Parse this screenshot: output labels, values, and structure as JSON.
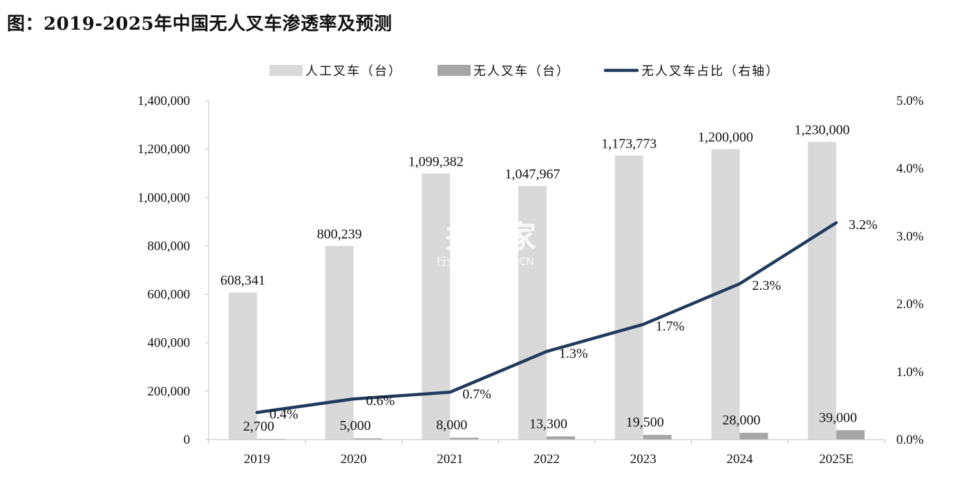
{
  "title": "图：2019-2025年中国无人叉车渗透率及预测",
  "watermark": {
    "brand": "并购家",
    "tagline": "行业报告 IPOIPO.CN"
  },
  "chart_data": {
    "type": "bar",
    "categories": [
      "2019",
      "2020",
      "2021",
      "2022",
      "2023",
      "2024",
      "2025E"
    ],
    "series": [
      {
        "name": "人工叉车（台）",
        "type": "bar",
        "axis": "left",
        "color": "#d9d9d9",
        "values": [
          608341,
          800239,
          1099382,
          1047967,
          1173773,
          1200000,
          1230000
        ],
        "labels": [
          "608,341",
          "800,239",
          "1,099,382",
          "1,047,967",
          "1,173,773",
          "1,200,000",
          "1,230,000"
        ]
      },
      {
        "name": "无人叉车（台）",
        "type": "bar",
        "axis": "left",
        "color": "#a6a6a6",
        "values": [
          2700,
          5000,
          8000,
          13300,
          19500,
          28000,
          39000
        ],
        "labels": [
          "2,700",
          "5,000",
          "8,000",
          "13,300",
          "19,500",
          "28,000",
          "39,000"
        ]
      },
      {
        "name": "无人叉车占比（右轴",
        "type": "line",
        "axis": "right",
        "color": "#1f3a5c",
        "values": [
          0.4,
          0.6,
          0.7,
          1.3,
          1.7,
          2.3,
          3.2
        ],
        "labels": [
          "0.4%",
          "0.6%",
          "0.7%",
          "1.3%",
          "1.7%",
          "2.3%",
          "3.2%"
        ]
      }
    ],
    "y_left": {
      "min": 0,
      "max": 1400000,
      "ticks": [
        "0",
        "200,000",
        "400,000",
        "600,000",
        "800,000",
        "1,000,000",
        "1,200,000",
        "1,400,000"
      ]
    },
    "y_right": {
      "min": 0,
      "max": 5,
      "ticks": [
        "0.0%",
        "1.0%",
        "2.0%",
        "3.0%",
        "4.0%",
        "5.0%"
      ]
    },
    "legend": {
      "position": "top",
      "labels": [
        "人工叉车（台）",
        "无人叉车（台）",
        "无人叉车占比（右轴）"
      ]
    },
    "grid": false
  }
}
